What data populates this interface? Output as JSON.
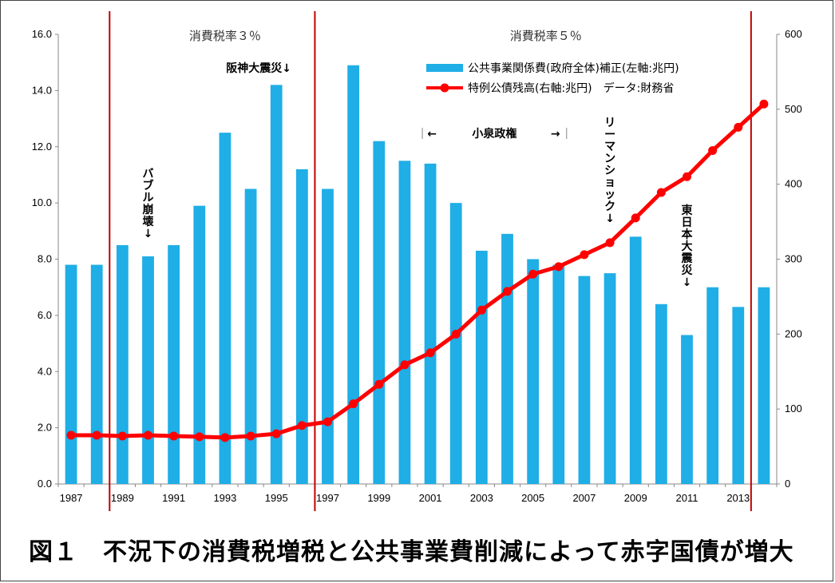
{
  "caption": "図１　不況下の消費税増税と公共事業費削減によって赤字国債が増大",
  "chart_data": {
    "type": "bar",
    "x": [
      1987,
      1988,
      1989,
      1990,
      1991,
      1992,
      1993,
      1994,
      1995,
      1996,
      1997,
      1998,
      1999,
      2000,
      2001,
      2002,
      2003,
      2004,
      2005,
      2006,
      2007,
      2008,
      2009,
      2010,
      2011,
      2012,
      2013,
      2014
    ],
    "x_tick_labels": [
      "1987",
      "1989",
      "1991",
      "1993",
      "1995",
      "1997",
      "1999",
      "2001",
      "2003",
      "2005",
      "2007",
      "2009",
      "2011",
      "2013"
    ],
    "y_left": {
      "ticks": [
        "0.0",
        "2.0",
        "4.0",
        "6.0",
        "8.0",
        "10.0",
        "12.0",
        "14.0",
        "16.0"
      ],
      "range": [
        0,
        16
      ]
    },
    "y_right": {
      "ticks": [
        "0",
        "100",
        "200",
        "300",
        "400",
        "500",
        "600"
      ],
      "range": [
        0,
        600
      ]
    },
    "series": [
      {
        "name": "公共事業関係費(政府全体)補正(左軸:兆円)",
        "type": "bar",
        "axis": "left",
        "color": "#1FAEE6",
        "values": [
          7.8,
          7.8,
          8.5,
          8.1,
          8.5,
          9.9,
          12.5,
          10.5,
          14.2,
          11.2,
          10.5,
          14.9,
          12.2,
          11.5,
          11.4,
          10.0,
          8.3,
          8.9,
          8.0,
          7.8,
          7.4,
          7.5,
          8.8,
          6.4,
          5.3,
          7.0,
          6.3,
          7.0
        ]
      },
      {
        "name": "特例公債残高(右軸:兆円)",
        "type": "line",
        "axis": "right",
        "color": "#FF0000",
        "values": [
          65,
          65,
          64,
          65,
          64,
          63,
          62,
          64,
          67,
          78,
          83,
          107,
          133,
          159,
          175,
          200,
          232,
          257,
          280,
          290,
          306,
          322,
          355,
          389,
          410,
          445,
          476,
          507
        ]
      }
    ],
    "legend_note": "データ:財務省",
    "legend_position": "top-center",
    "vlines": [
      1988.5,
      1996.5,
      2013.5
    ],
    "eras": [
      {
        "label": "消費税率３％",
        "x": 1993
      },
      {
        "label": "消費税率５％",
        "x": 2005.5
      }
    ],
    "annotations": [
      {
        "id": "hanshin",
        "text": "阪神大震災↓",
        "x": 1994.5,
        "orientation": "horizontal"
      },
      {
        "id": "bubble",
        "text": "バブル崩壊↓",
        "x": 1990,
        "orientation": "vertical"
      },
      {
        "id": "lehman",
        "text": "リーマンショック↓",
        "x": 2008,
        "orientation": "vertical"
      },
      {
        "id": "higashi",
        "text": "東日本大震災↓",
        "x": 2011,
        "orientation": "vertical"
      }
    ],
    "koizumi": {
      "label": "小泉政権",
      "left_arrow": "←",
      "right_arrow": "→",
      "from": 2001,
      "to": 2006
    }
  }
}
